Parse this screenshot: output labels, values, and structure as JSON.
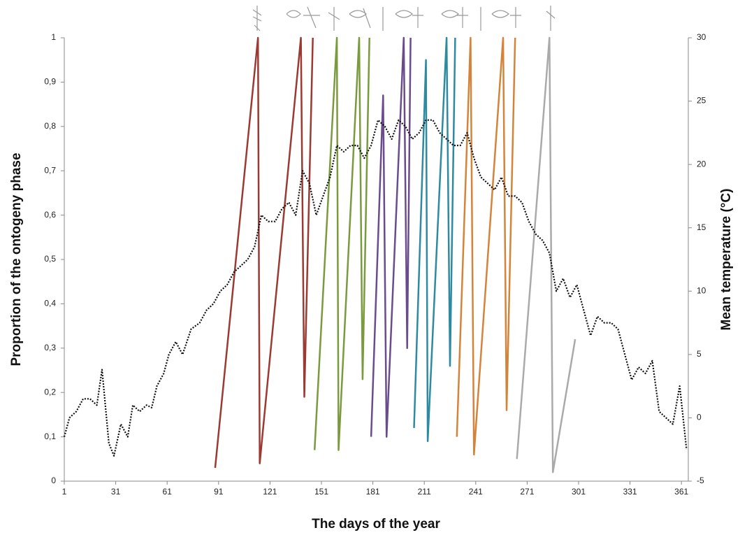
{
  "chart_data": {
    "type": "line",
    "xlabel": "The days of the year",
    "ylabel": "Proportion of the ontogeny phase",
    "y2label": "Mean temperature (°C)",
    "xlim": [
      1,
      365
    ],
    "xticks": [
      1,
      31,
      61,
      91,
      121,
      151,
      181,
      211,
      241,
      271,
      301,
      331,
      361
    ],
    "ylim": [
      0,
      1
    ],
    "yticks": [
      0,
      {
        "value": 0.1,
        "label": "0,1"
      },
      {
        "value": 0.2,
        "label": "0,2"
      },
      {
        "value": 0.3,
        "label": "0,3"
      },
      {
        "value": 0.4,
        "label": "0,4"
      },
      {
        "value": 0.5,
        "label": "0,5"
      },
      {
        "value": 0.6,
        "label": "0,6"
      },
      {
        "value": 0.7,
        "label": "0,7"
      },
      {
        "value": 0.8,
        "label": "0,8"
      },
      {
        "value": 0.9,
        "label": "0,9"
      },
      1
    ],
    "y2lim": [
      -5,
      30
    ],
    "y2ticks": [
      -5,
      0,
      5,
      10,
      15,
      20,
      25,
      30
    ],
    "series": [
      {
        "color": "#9b3a33",
        "x": [
          89,
          114,
          115,
          139,
          141,
          146
        ],
        "values": [
          0.03,
          1,
          0.04,
          1,
          0.19,
          1
        ]
      },
      {
        "color": "#7a9a3e",
        "x": [
          147,
          160,
          161,
          173,
          175,
          179
        ],
        "values": [
          0.07,
          1,
          0.07,
          1,
          0.23,
          1
        ]
      },
      {
        "color": "#6a4c8c",
        "x": [
          180,
          187,
          189,
          199,
          201,
          203
        ],
        "values": [
          0.1,
          0.87,
          0.1,
          1,
          0.3,
          1
        ]
      },
      {
        "color": "#2e8aa0",
        "x": [
          205,
          212,
          213,
          224,
          226,
          229
        ],
        "values": [
          0.12,
          0.95,
          0.09,
          1,
          0.26,
          1
        ]
      },
      {
        "color": "#d4843a",
        "x": [
          230,
          238,
          240,
          257,
          259,
          264
        ],
        "values": [
          0.1,
          1,
          0.06,
          1,
          0.16,
          1
        ]
      },
      {
        "color": "#aaaaaa",
        "x": [
          265,
          284,
          286,
          299
        ],
        "values": [
          0.05,
          1,
          0.02,
          0.32
        ]
      },
      {
        "color": "#111111",
        "axis": "y2",
        "linestyle": "dotted",
        "x": [
          1,
          4,
          8,
          12,
          16,
          20,
          23,
          27,
          30,
          34,
          38,
          41,
          45,
          49,
          52,
          55,
          59,
          62,
          66,
          70,
          75,
          80,
          84,
          88,
          92,
          96,
          100,
          104,
          108,
          112,
          116,
          120,
          124,
          128,
          132,
          136,
          140,
          144,
          148,
          152,
          156,
          160,
          164,
          168,
          172,
          176,
          180,
          184,
          188,
          192,
          196,
          200,
          204,
          208,
          212,
          216,
          220,
          224,
          228,
          232,
          236,
          240,
          244,
          248,
          252,
          256,
          260,
          264,
          268,
          272,
          276,
          280,
          284,
          288,
          292,
          296,
          300,
          304,
          308,
          312,
          316,
          320,
          324,
          328,
          332,
          336,
          340,
          344,
          348,
          352,
          356,
          360,
          364
        ],
        "values": [
          -1.5,
          0,
          0.5,
          1.5,
          1.5,
          1,
          3.8,
          -2,
          -3,
          -0.5,
          -1.5,
          1,
          0.5,
          1,
          0.8,
          2.5,
          3.5,
          5,
          6,
          5,
          7,
          7.5,
          8.5,
          9,
          10,
          10.5,
          11.5,
          12,
          12.5,
          13.5,
          16,
          15.5,
          15.5,
          16.5,
          17,
          16,
          19.5,
          18.5,
          16,
          17.5,
          19,
          21.5,
          21,
          21.5,
          21.5,
          20.5,
          21.5,
          23.5,
          23,
          22,
          23.5,
          23,
          22,
          22.5,
          23.5,
          23.5,
          22.5,
          22,
          21.5,
          21.5,
          22.5,
          20.5,
          19,
          18.5,
          18,
          19,
          17.5,
          17.5,
          17,
          15.5,
          14.5,
          14,
          13,
          10,
          11,
          9.5,
          10.5,
          8.5,
          6.5,
          8,
          7.5,
          7.5,
          7,
          5,
          3,
          4,
          3.5,
          4.5,
          0.5,
          0,
          -0.5,
          2.5,
          -2.5
        ]
      }
    ]
  }
}
